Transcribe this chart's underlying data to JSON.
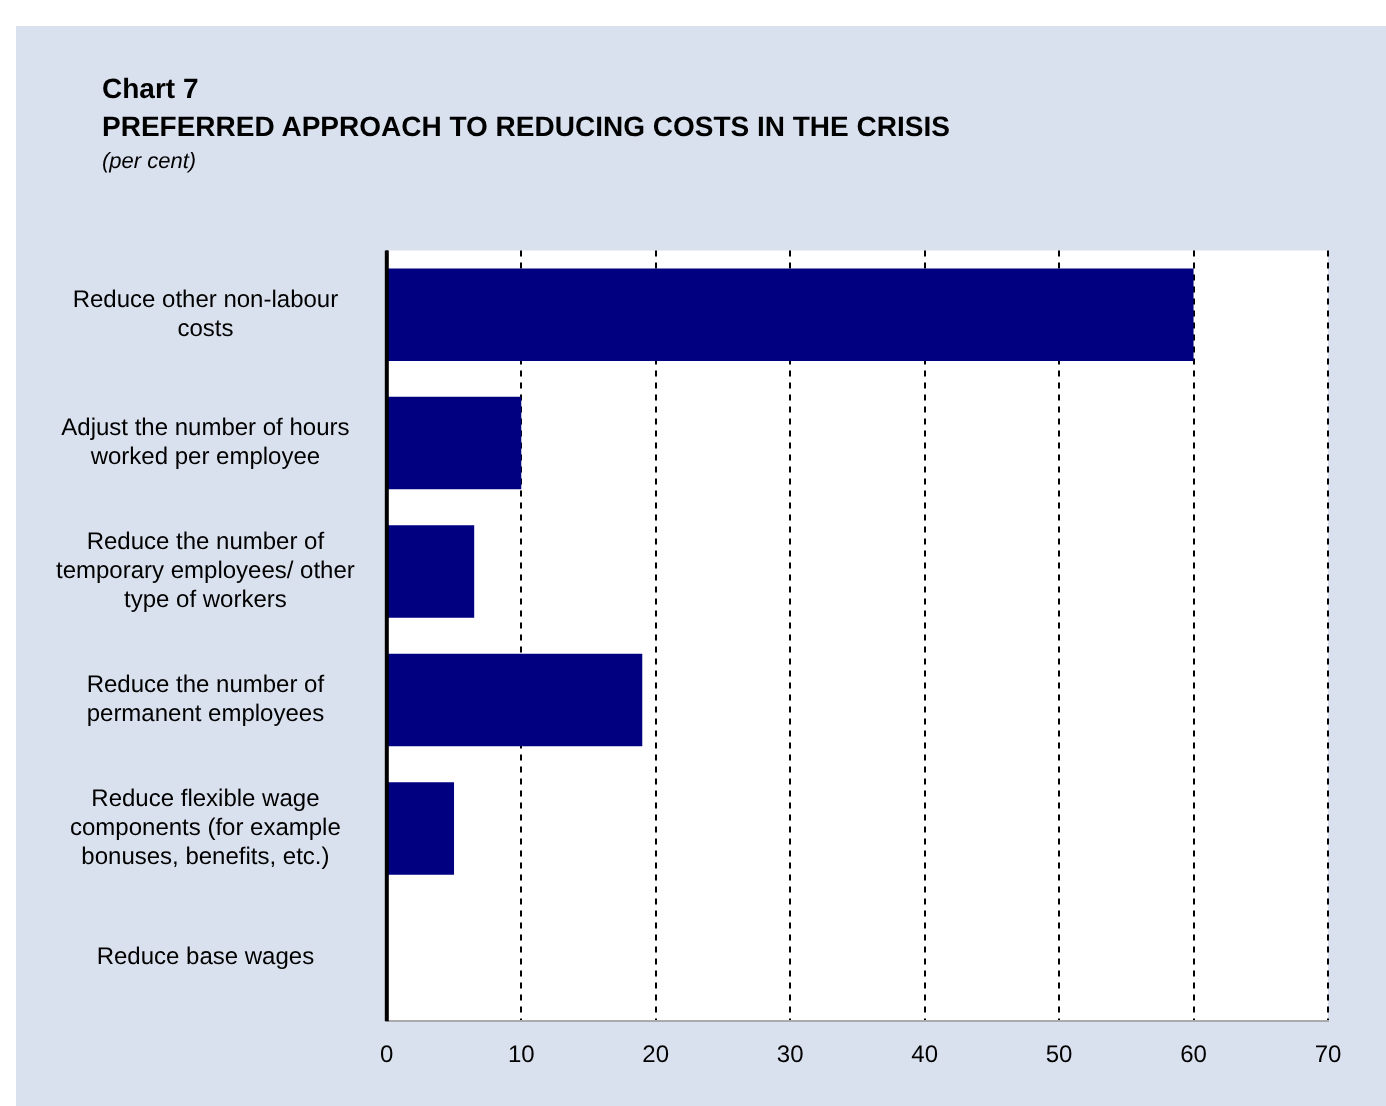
{
  "chart_data": {
    "type": "bar",
    "orientation": "horizontal",
    "title": "Chart 7",
    "subtitle": "PREFERRED APPROACH TO REDUCING COSTS IN THE CRISIS",
    "ylabel": "(per cent)",
    "categories": [
      "Reduce other non-labour costs",
      "Adjust the number of hours worked per employee",
      "Reduce the number of temporary employees/ other type of workers",
      "Reduce the number of permanent employees",
      "Reduce flexible wage components (for example bonuses, benefits, etc.)",
      "Reduce base wages"
    ],
    "values": [
      60,
      10,
      6.5,
      19,
      5,
      0
    ],
    "color": "#000080",
    "xlim": [
      0,
      70
    ],
    "xticks": [
      0,
      10,
      20,
      30,
      40,
      50,
      60,
      70
    ],
    "grid": "x",
    "legend": false
  }
}
